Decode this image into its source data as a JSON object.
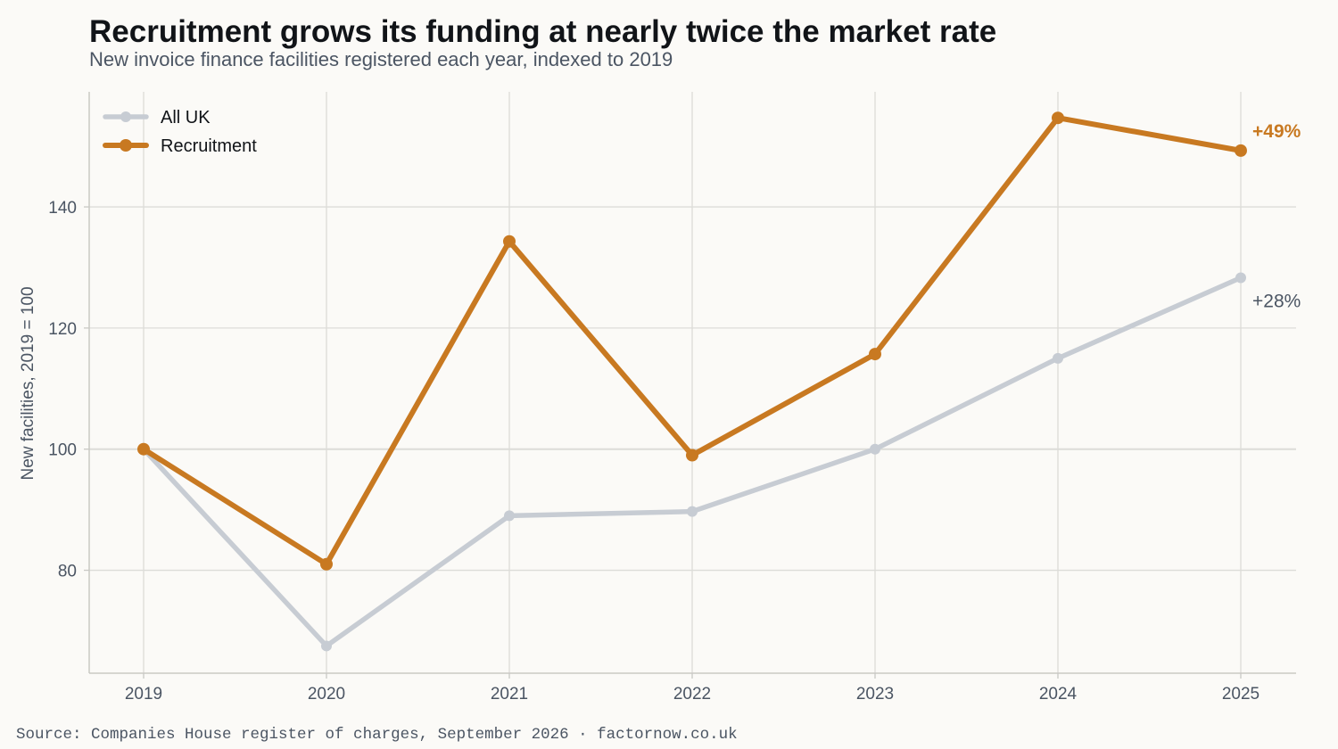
{
  "header": {
    "title": "Recruitment grows its funding at nearly twice the market rate",
    "subtitle": "New invoice finance facilities registered each year, indexed to 2019"
  },
  "footer": {
    "source": "Source: Companies House register of charges, September 2026 · factornow.co.uk"
  },
  "colors": {
    "background": "#fbfaf7",
    "grid": "#dcdcd8",
    "all_uk": "#c7ccd3",
    "recruitment": "#c87921",
    "end_label_all_uk": "#4b5563"
  },
  "chart_data": {
    "type": "line",
    "title": "Recruitment grows its funding at nearly twice the market rate",
    "subtitle": "New invoice finance facilities registered each year, indexed to 2019",
    "xlabel": "",
    "ylabel": "New facilities, 2019 = 100",
    "x": [
      "2019",
      "2020",
      "2021",
      "2022",
      "2023",
      "2024",
      "2025"
    ],
    "ylim": [
      63,
      159
    ],
    "yticks": [
      80,
      100,
      120,
      140
    ],
    "grid": true,
    "legend_position": "top-left",
    "series": [
      {
        "name": "All UK",
        "values": [
          100,
          67.5,
          89,
          89.7,
          100,
          115,
          128.3
        ],
        "color": "#c7ccd3",
        "end_label": "+28%"
      },
      {
        "name": "Recruitment",
        "values": [
          100,
          81,
          134.3,
          99,
          115.7,
          154.7,
          149.3
        ],
        "color": "#c87921",
        "end_label": "+49%"
      }
    ]
  }
}
